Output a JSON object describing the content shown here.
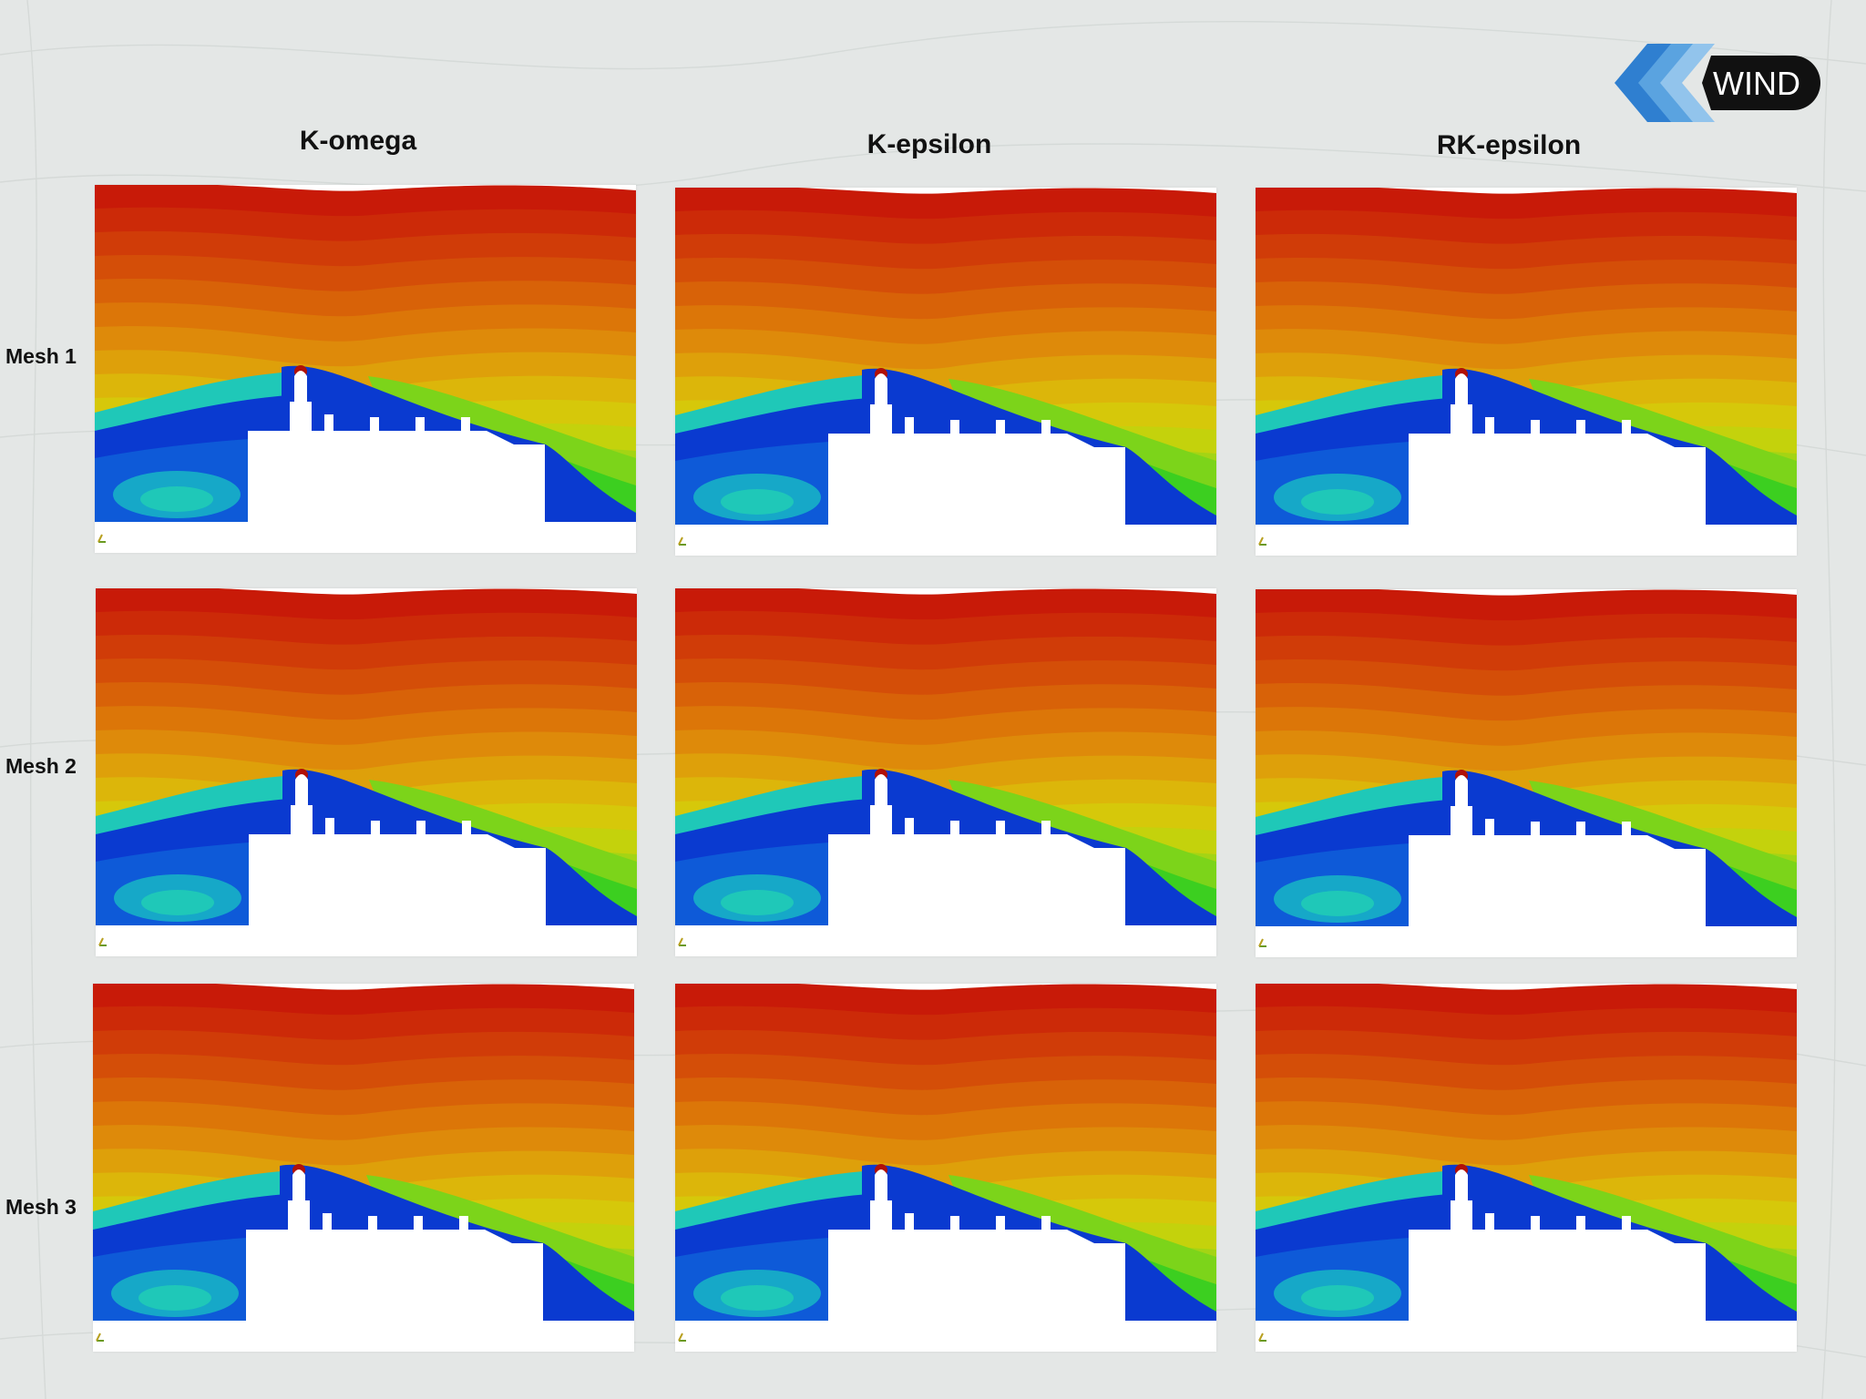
{
  "columns": [
    {
      "label": "K-omega"
    },
    {
      "label": "K-epsilon"
    },
    {
      "label": "RK-epsilon"
    }
  ],
  "rows": [
    {
      "label": "Mesh 1"
    },
    {
      "label": "Mesh 2"
    },
    {
      "label": "Mesh 3"
    }
  ],
  "logo": {
    "text": "WIND",
    "icon": "chevron-arrows-icon"
  },
  "colors": {
    "contour_high": "#c81e0a",
    "contour_mid": "#d6d20a",
    "contour_low": "#0a2fc6",
    "recirculation": "#1ab8b0",
    "wake_green": "#2fd21a"
  }
}
